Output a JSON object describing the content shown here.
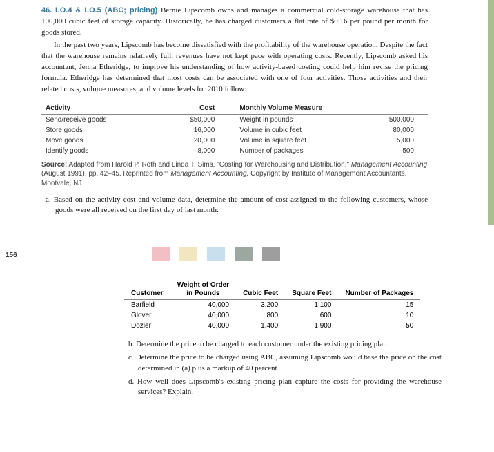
{
  "problem": {
    "number": "46.",
    "tag": "LO.4 & LO.5 (ABC; pricing)",
    "intro": "Bernie Lipscomb owns and manages a commercial cold-storage warehouse that has 100,000 cubic feet of storage capacity. Historically, he has charged customers a flat rate of $0.16 per pound per month for goods stored.",
    "para2": "In the past two years, Lipscomb has become dissatisfied with the profitability of the warehouse operation. Despite the fact that the warehouse remains relatively full, revenues have not kept pace with operating costs. Recently, Lipscomb asked his accountant, Jenna Etheridge, to improve his understanding of how activity-based costing could help him revise the pricing formula. Etheridge has determined that most costs can be associated with one of four activities. Those activities and their related costs, volume measures, and volume levels for 2010 follow:"
  },
  "activity_table": {
    "headers": {
      "activity": "Activity",
      "cost": "Cost",
      "measure": "Monthly Volume Measure"
    },
    "rows": [
      {
        "activity": "Send/receive goods",
        "cost": "$50,000",
        "measure": "Weight in pounds",
        "vol": "500,000"
      },
      {
        "activity": "Store goods",
        "cost": "16,000",
        "measure": "Volume in cubic feet",
        "vol": "80,000"
      },
      {
        "activity": "Move goods",
        "cost": "20,000",
        "measure": "Volume in square feet",
        "vol": "5,000"
      },
      {
        "activity": "Identify goods",
        "cost": "8,000",
        "measure": "Number of packages",
        "vol": "500"
      }
    ]
  },
  "source": {
    "label": "Source:",
    "text1": "Adapted from Harold P. Roth and Linda T. Sims, \"Costing for Warehousing and Distribution,\"",
    "text2": "Management Accounting",
    "text3": "(August 1991), pp. 42–45. Reprinted from",
    "text4": "Management Accounting.",
    "text5": "Copyright by Institute of Management Accountants, Montvale, NJ."
  },
  "q_a": "a. Based on the activity cost and volume data, determine the amount of cost assigned to the following customers, whose goods were all received on the first day of last month:",
  "page_number": "156",
  "swatch_colors": [
    "#f2bfc4",
    "#f2e6bf",
    "#c8dff0",
    "#9aa89f",
    "#9e9e9e"
  ],
  "customer_table": {
    "headers": {
      "customer": "Customer",
      "weight": "Weight of Order\nin Pounds",
      "cubic": "Cubic Feet",
      "square": "Square Feet",
      "packages": "Number of Packages"
    },
    "rows": [
      {
        "customer": "Barfield",
        "weight": "40,000",
        "cubic": "3,200",
        "square": "1,100",
        "packages": "15"
      },
      {
        "customer": "Glover",
        "weight": "40,000",
        "cubic": "800",
        "square": "600",
        "packages": "10"
      },
      {
        "customer": "Dozier",
        "weight": "40,000",
        "cubic": "1,400",
        "square": "1,900",
        "packages": "50"
      }
    ]
  },
  "q_b": "b. Determine the price to be charged to each customer under the existing pricing plan.",
  "q_c": "c. Determine the price to be charged using ABC, assuming Lipscomb would base the price on the cost determined in (a) plus a markup of 40 percent.",
  "q_d": "d. How well does Lipscomb's existing pricing plan capture the costs for providing the warehouse services? Explain."
}
